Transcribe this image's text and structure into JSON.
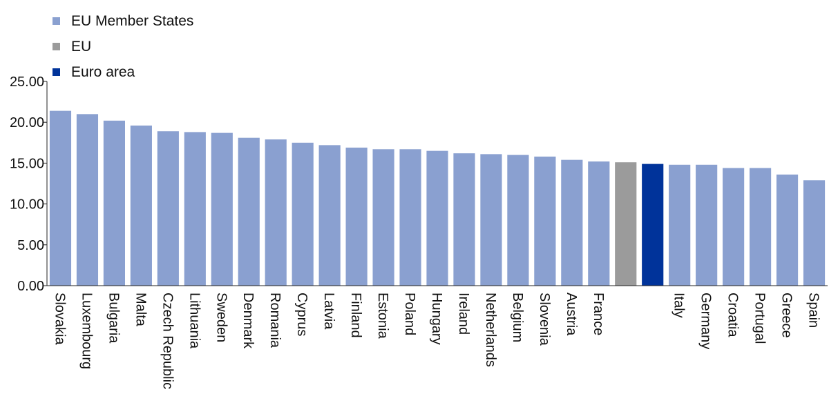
{
  "chart_data": {
    "type": "bar",
    "title": "",
    "xlabel": "",
    "ylabel": "",
    "ylim": [
      0,
      25
    ],
    "yticks": [
      "0.00",
      "5.00",
      "10.00",
      "15.00",
      "20.00",
      "25.00"
    ],
    "grid": false,
    "legend_position": "top-left",
    "colors": {
      "EU Member States": "#8aa0d0",
      "EU": "#9b9b9b",
      "Euro area": "#00339a"
    },
    "legend": [
      {
        "label": "EU Member States",
        "color": "#8aa0d0"
      },
      {
        "label": "EU",
        "color": "#9b9b9b"
      },
      {
        "label": "Euro area",
        "color": "#00339a"
      }
    ],
    "bars": [
      {
        "label": "Slovakia",
        "value": 21.4,
        "group": "EU Member States"
      },
      {
        "label": "Luxembourg",
        "value": 21.0,
        "group": "EU Member States"
      },
      {
        "label": "Bulgaria",
        "value": 20.2,
        "group": "EU Member States"
      },
      {
        "label": "Malta",
        "value": 19.6,
        "group": "EU Member States"
      },
      {
        "label": "Czech Republic",
        "value": 18.9,
        "group": "EU Member States"
      },
      {
        "label": "Lithuania",
        "value": 18.8,
        "group": "EU Member States"
      },
      {
        "label": "Sweden",
        "value": 18.7,
        "group": "EU Member States"
      },
      {
        "label": "Denmark",
        "value": 18.1,
        "group": "EU Member States"
      },
      {
        "label": "Romania",
        "value": 17.9,
        "group": "EU Member States"
      },
      {
        "label": "Cyprus",
        "value": 17.5,
        "group": "EU Member States"
      },
      {
        "label": "Latvia",
        "value": 17.2,
        "group": "EU Member States"
      },
      {
        "label": "Finland",
        "value": 16.9,
        "group": "EU Member States"
      },
      {
        "label": "Estonia",
        "value": 16.7,
        "group": "EU Member States"
      },
      {
        "label": "Poland",
        "value": 16.7,
        "group": "EU Member States"
      },
      {
        "label": "Hungary",
        "value": 16.5,
        "group": "EU Member States"
      },
      {
        "label": "Ireland",
        "value": 16.2,
        "group": "EU Member States"
      },
      {
        "label": "Netherlands",
        "value": 16.1,
        "group": "EU Member States"
      },
      {
        "label": "Belgium",
        "value": 16.0,
        "group": "EU Member States"
      },
      {
        "label": "Slovenia",
        "value": 15.8,
        "group": "EU Member States"
      },
      {
        "label": "Austria",
        "value": 15.4,
        "group": "EU Member States"
      },
      {
        "label": "France",
        "value": 15.2,
        "group": "EU Member States"
      },
      {
        "label": "",
        "value": 15.1,
        "group": "EU"
      },
      {
        "label": "",
        "value": 14.9,
        "group": "Euro area"
      },
      {
        "label": "Italy",
        "value": 14.8,
        "group": "EU Member States"
      },
      {
        "label": "Germany",
        "value": 14.8,
        "group": "EU Member States"
      },
      {
        "label": "Croatia",
        "value": 14.4,
        "group": "EU Member States"
      },
      {
        "label": "Portugal",
        "value": 14.4,
        "group": "EU Member States"
      },
      {
        "label": "Greece",
        "value": 13.6,
        "group": "EU Member States"
      },
      {
        "label": "Spain",
        "value": 12.9,
        "group": "EU Member States"
      }
    ]
  }
}
